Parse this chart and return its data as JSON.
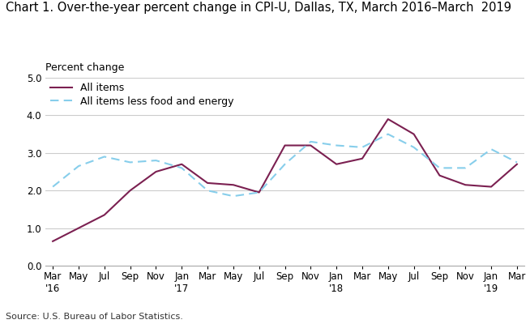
{
  "title": "Chart 1. Over-the-year percent change in CPI-U, Dallas, TX, March 2016–March  2019",
  "ylabel": "Percent change",
  "source": "Source: U.S. Bureau of Labor Statistics.",
  "ylim": [
    0.0,
    5.0
  ],
  "yticks": [
    0.0,
    1.0,
    2.0,
    3.0,
    4.0,
    5.0
  ],
  "all_items": [
    0.65,
    1.0,
    1.35,
    2.0,
    2.5,
    2.7,
    2.2,
    2.15,
    1.95,
    3.2,
    3.2,
    2.7,
    2.85,
    3.9,
    3.5,
    2.4,
    2.15,
    2.1,
    2.7
  ],
  "core_items": [
    2.1,
    2.65,
    2.9,
    2.75,
    2.8,
    2.6,
    2.0,
    1.85,
    1.95,
    2.7,
    3.3,
    3.2,
    3.15,
    3.5,
    3.15,
    2.6,
    2.6,
    3.1,
    2.75
  ],
  "all_items_color": "#7B2051",
  "core_items_color": "#87CEEB",
  "all_items_label": "All items",
  "core_items_label": "All items less food and energy",
  "background_color": "#ffffff",
  "grid_color": "#cccccc",
  "title_fontsize": 10.5,
  "label_fontsize": 9,
  "tick_fontsize": 8.5,
  "legend_fontsize": 9,
  "tick_labels_line1": [
    "Mar",
    "May",
    "Jul",
    "Sep",
    "Nov",
    "Jan",
    "Mar",
    "May",
    "Jul",
    "Sep",
    "Nov",
    "Jan",
    "Mar",
    "May",
    "Jul",
    "Sep",
    "Nov",
    "Jan",
    "Mar"
  ],
  "tick_labels_line2": [
    "'16",
    "",
    "",
    "",
    "",
    "'17",
    "",
    "",
    "",
    "",
    "",
    "'18",
    "",
    "",
    "",
    "",
    "",
    "'19",
    ""
  ],
  "year_tick_indices": [
    0,
    5,
    11,
    17
  ]
}
